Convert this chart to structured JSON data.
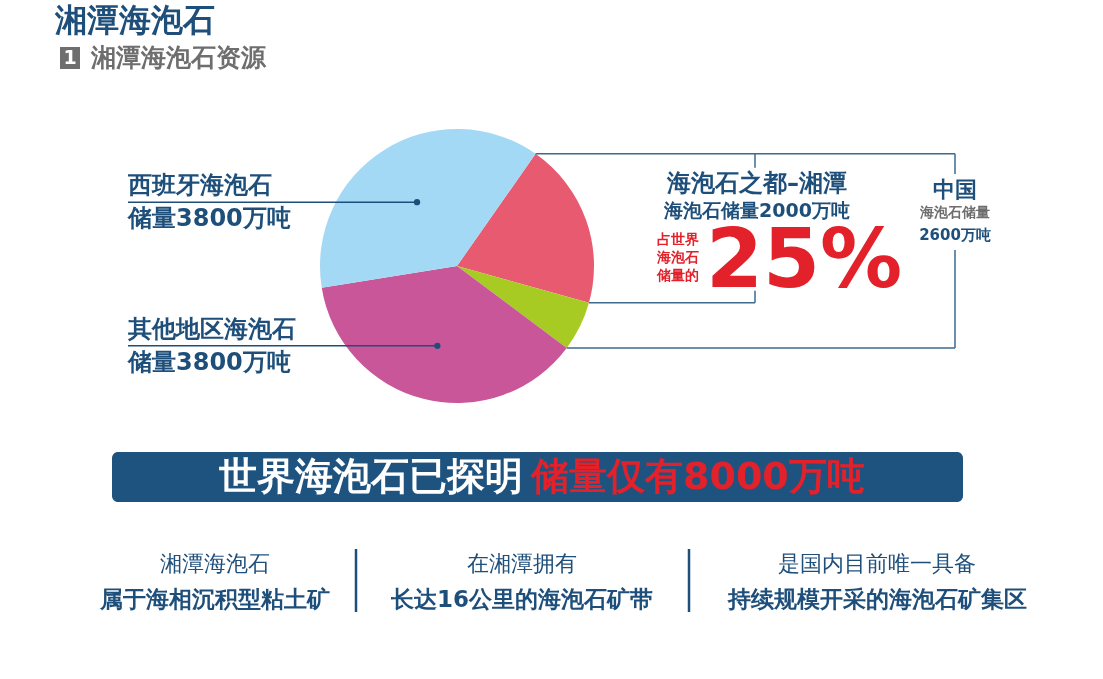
{
  "chart_data": {
    "type": "pie",
    "title": "湘潭海泡石",
    "subtitle": "1 湘潭海泡石资源",
    "categories": [
      "海泡石之都–湘潭",
      null,
      "其他地区海泡石",
      "西班牙海泡石"
    ],
    "values": [
      2000,
      600,
      3800,
      3800
    ],
    "colors": [
      "#e85a70",
      "#a8cb23",
      "#c85698",
      "#a3d9f5"
    ],
    "value_labels": [
      "海泡石储量2000万吨",
      null,
      "储量3800万吨",
      "储量3800万吨"
    ],
    "annotations": [
      "中国",
      "海泡石储量",
      "2600万吨",
      "占世界",
      "海泡石",
      "储量的",
      "25%",
      "世界海泡石已探明",
      "储量仅有8000万吨",
      "湘潭海泡石",
      "属于海相沉积型粘土矿",
      "在湘潭拥有",
      "长达16公里的海泡石矿带",
      "是国内目前唯一具备",
      "持续规模开采的海泡石矿集区"
    ]
  }
}
